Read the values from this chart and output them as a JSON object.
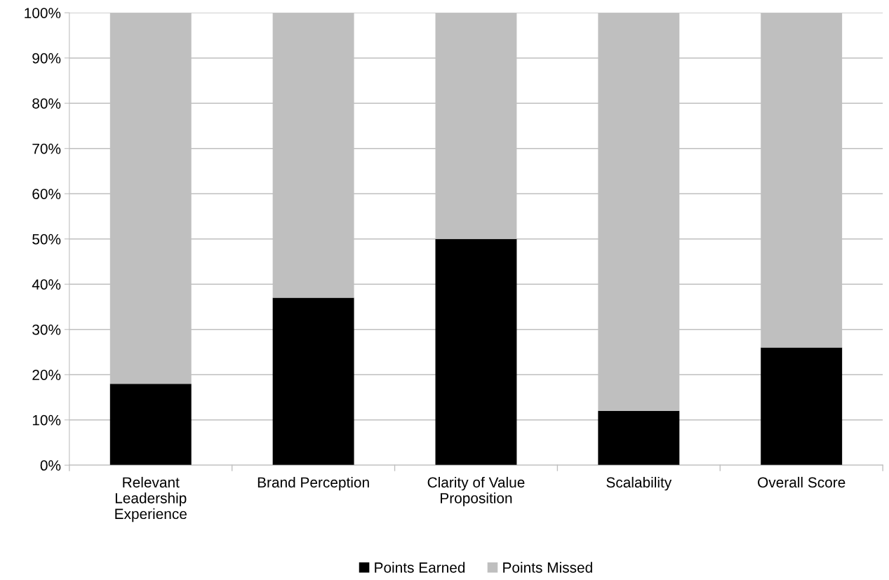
{
  "chart_data": {
    "type": "bar",
    "stacked": true,
    "categories": [
      "Relevant\nLeadership\nExperience",
      "Brand Perception",
      "Clarity of Value\nProposition",
      "Scalability",
      "Overall Score"
    ],
    "series": [
      {
        "name": "Points Earned",
        "color": "#000000",
        "values": [
          18,
          37,
          50,
          12,
          26
        ]
      },
      {
        "name": "Points Missed",
        "color": "#bfbfbf",
        "values": [
          82,
          63,
          50,
          88,
          74
        ]
      }
    ],
    "ylim": [
      0,
      100
    ],
    "yticks": [
      {
        "value": 0,
        "label": "0%"
      },
      {
        "value": 10,
        "label": "10%"
      },
      {
        "value": 20,
        "label": "20%"
      },
      {
        "value": 30,
        "label": "30%"
      },
      {
        "value": 40,
        "label": "40%"
      },
      {
        "value": 50,
        "label": "50%"
      },
      {
        "value": 60,
        "label": "60%"
      },
      {
        "value": 70,
        "label": "70%"
      },
      {
        "value": 80,
        "label": "80%"
      },
      {
        "value": 90,
        "label": "90%"
      },
      {
        "value": 100,
        "label": "100%"
      }
    ],
    "grid": "y",
    "legend": "bottom"
  }
}
